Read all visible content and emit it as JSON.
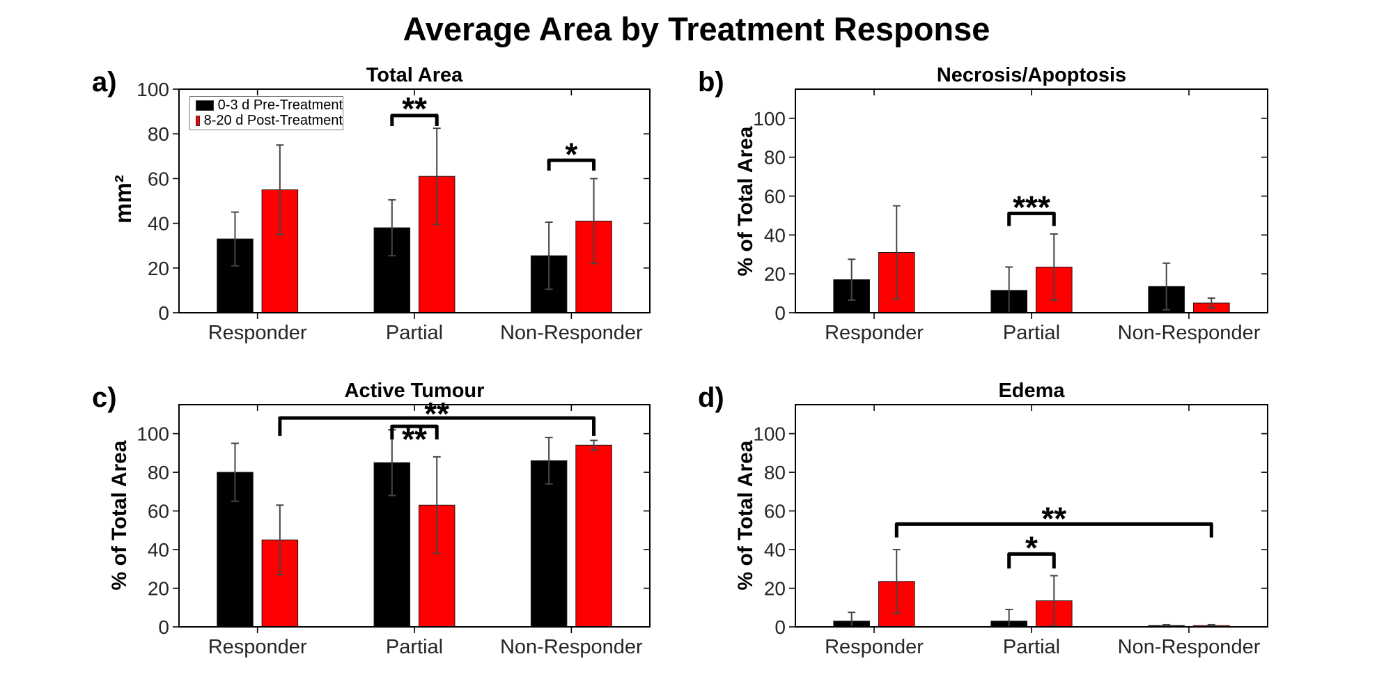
{
  "figure": {
    "title": "Average Area by Treatment Response"
  },
  "legend": {
    "items": [
      {
        "label": "0-3 d Pre-Treatment",
        "color": "#000000"
      },
      {
        "label": "8-20 d Post-Treatment",
        "color": "#ff0000"
      }
    ]
  },
  "chart_data": [
    {
      "id": "a",
      "type": "bar",
      "panel_tag": "a)",
      "title": "Total Area",
      "ylabel": "mm²",
      "categories": [
        "Responder",
        "Partial",
        "Non-Responder"
      ],
      "series": [
        {
          "name": "0-3 d Pre-Treatment",
          "color": "#000000",
          "values": [
            33,
            38,
            25.5
          ],
          "errors": [
            12,
            12.5,
            15
          ]
        },
        {
          "name": "8-20 d Post-Treatment",
          "color": "#ff0000",
          "values": [
            55,
            61,
            41
          ],
          "errors": [
            20,
            21.5,
            19
          ]
        }
      ],
      "ylim": [
        0,
        100
      ],
      "yticks": [
        0,
        20,
        40,
        60,
        80,
        100
      ],
      "grid": false,
      "legend_position": "upper-left",
      "significance": [
        {
          "stars": "**",
          "x1": {
            "cat": 1,
            "ser": 0
          },
          "x2": {
            "cat": 1,
            "ser": 1
          },
          "bar_y": 88.2,
          "drop_to": 83.5,
          "star_y": 93.2
        },
        {
          "stars": "*",
          "x1": {
            "cat": 2,
            "ser": 0
          },
          "x2": {
            "cat": 2,
            "ser": 1
          },
          "bar_y": 68.2,
          "drop_to": 63.6,
          "star_y": 72.8
        }
      ]
    },
    {
      "id": "b",
      "type": "bar",
      "panel_tag": "b)",
      "title": "Necrosis/Apoptosis",
      "ylabel": "% of Total Area",
      "categories": [
        "Responder",
        "Partial",
        "Non-Responder"
      ],
      "series": [
        {
          "name": "0-3 d Pre-Treatment",
          "color": "#000000",
          "values": [
            17,
            11.5,
            13.5
          ],
          "errors": [
            10.5,
            12,
            12
          ]
        },
        {
          "name": "8-20 d Post-Treatment",
          "color": "#ff0000",
          "values": [
            31,
            23.5,
            5
          ],
          "errors": [
            24,
            17,
            2.5
          ]
        }
      ],
      "ylim": [
        0,
        115
      ],
      "yticks": [
        0,
        20,
        40,
        60,
        80,
        100
      ],
      "grid": false,
      "legend_position": "none",
      "significance": [
        {
          "stars": "***",
          "x1": {
            "cat": 1,
            "ser": 0
          },
          "x2": {
            "cat": 1,
            "ser": 1
          },
          "bar_y": 51.1,
          "drop_to": 44.6,
          "star_y": 56.5
        }
      ]
    },
    {
      "id": "c",
      "type": "bar",
      "panel_tag": "c)",
      "title": "Active Tumour",
      "ylabel": "% of Total Area",
      "categories": [
        "Responder",
        "Partial",
        "Non-Responder"
      ],
      "series": [
        {
          "name": "0-3 d Pre-Treatment",
          "color": "#000000",
          "values": [
            80,
            85,
            86
          ],
          "errors": [
            15,
            17,
            12
          ]
        },
        {
          "name": "8-20 d Post-Treatment",
          "color": "#ff0000",
          "values": [
            45,
            63,
            94
          ],
          "errors": [
            18,
            25,
            2.5
          ]
        }
      ],
      "ylim": [
        0,
        115
      ],
      "yticks": [
        0,
        20,
        40,
        60,
        80,
        100
      ],
      "grid": false,
      "legend_position": "none",
      "significance": [
        {
          "stars": "**",
          "x1": {
            "cat": 0,
            "ser": 1
          },
          "x2": {
            "cat": 2,
            "ser": 1
          },
          "bar_y": 108.1,
          "drop_to": 98.8,
          "star_y": 112.4
        },
        {
          "stars": "**",
          "x1": {
            "cat": 1,
            "ser": 0
          },
          "x2": {
            "cat": 1,
            "ser": 1
          },
          "bar_y": 103.8,
          "drop_to": 97.0,
          "star_y": 99.3
        }
      ]
    },
    {
      "id": "d",
      "type": "bar",
      "panel_tag": "d)",
      "title": "Edema",
      "ylabel": "% of Total Area",
      "categories": [
        "Responder",
        "Partial",
        "Non-Responder"
      ],
      "series": [
        {
          "name": "0-3 d Pre-Treatment",
          "color": "#000000",
          "values": [
            3,
            3,
            0.7
          ],
          "errors": [
            4.5,
            6,
            0.4
          ]
        },
        {
          "name": "8-20 d Post-Treatment",
          "color": "#ff0000",
          "values": [
            23.5,
            13.5,
            0.7
          ],
          "errors": [
            16.5,
            13,
            0.4
          ]
        }
      ],
      "ylim": [
        0,
        115
      ],
      "yticks": [
        0,
        20,
        40,
        60,
        80,
        100
      ],
      "grid": false,
      "legend_position": "none",
      "significance": [
        {
          "stars": "**",
          "x1": {
            "cat": 0,
            "ser": 1
          },
          "x2": {
            "cat": 2,
            "ser": 1
          },
          "bar_y": 53.2,
          "drop_to": 46.3,
          "star_y": 58.2
        },
        {
          "stars": "*",
          "x1": {
            "cat": 1,
            "ser": 0
          },
          "x2": {
            "cat": 1,
            "ser": 1
          },
          "bar_y": 37.7,
          "drop_to": 30.2,
          "star_y": 43.0
        }
      ]
    }
  ]
}
